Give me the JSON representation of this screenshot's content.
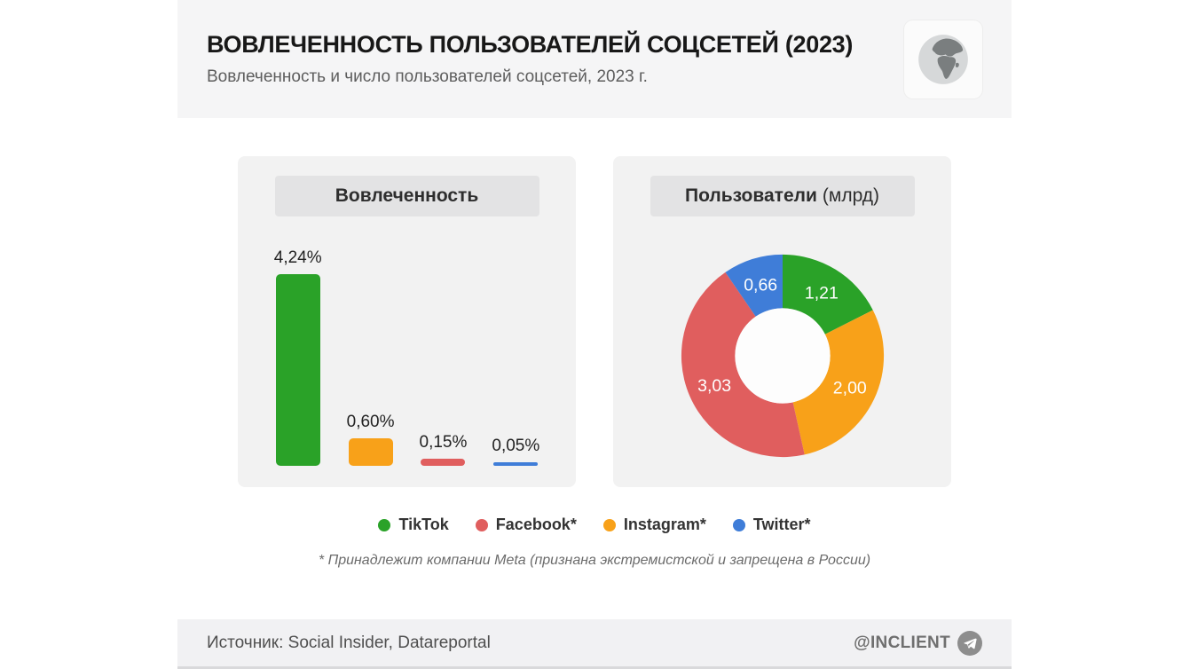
{
  "header": {
    "title": "ВОВЛЕЧЕННОСТЬ ПОЛЬЗОВАТЕЛЕЙ СОЦСЕТЕЙ (2023)",
    "subtitle": "Вовлеченность и число пользователей соцсетей, 2023 г."
  },
  "panels": {
    "engagement": {
      "title": "Вовлеченность"
    },
    "users": {
      "title_bold": "Пользователи",
      "title_regular": "(млрд)"
    }
  },
  "chart_data": [
    {
      "type": "bar",
      "title": "Вовлеченность",
      "categories": [
        "TikTok",
        "Instagram*",
        "Facebook*",
        "Twitter*"
      ],
      "values": [
        4.24,
        0.6,
        0.15,
        0.05
      ],
      "value_labels": [
        "4,24%",
        "0,60%",
        "0,15%",
        "0,05%"
      ],
      "colors": [
        "#2aa228",
        "#f8a119",
        "#e05e5e",
        "#3f7dd8"
      ],
      "unit": "%",
      "ylim": [
        0,
        4.24
      ],
      "grid": false,
      "legend_position": "below-both-charts"
    },
    {
      "type": "pie",
      "subtype": "donut",
      "title": "Пользователи (млрд)",
      "categories": [
        "TikTok",
        "Instagram*",
        "Facebook*",
        "Twitter*"
      ],
      "values": [
        1.21,
        2.0,
        3.03,
        0.66
      ],
      "value_labels": [
        "1,21",
        "2,00",
        "3,03",
        "0,66"
      ],
      "colors": [
        "#2aa228",
        "#f8a119",
        "#e05e5e",
        "#3f7dd8"
      ],
      "unit": "млрд",
      "start_angle": "top",
      "direction": "clockwise"
    }
  ],
  "legend": {
    "items": [
      {
        "label": "TikTok",
        "color": "#2aa228"
      },
      {
        "label": "Facebook*",
        "color": "#e05e5e"
      },
      {
        "label": "Instagram*",
        "color": "#f8a119"
      },
      {
        "label": "Twitter*",
        "color": "#3f7dd8"
      }
    ]
  },
  "footnote": "* Принадлежит компании Meta (признана экстремистской и запрещена в России)",
  "footer": {
    "source": "Источник: Social Insider, Datareportal",
    "handle": "@INCLIENT"
  },
  "icons": {
    "globe-icon": "grayscale earth showing Europe and Africa",
    "telegram-icon": "paper plane in gray circle"
  },
  "colors": {
    "card_header_bg": "#f5f5f6",
    "panel_bg": "#f2f2f2",
    "chip_bg": "#e3e3e4",
    "footer_bg": "#f1f1f3",
    "title_text": "#181818",
    "subtitle_text": "#5d5d5d",
    "donut_hole": "#fdfdfd"
  }
}
